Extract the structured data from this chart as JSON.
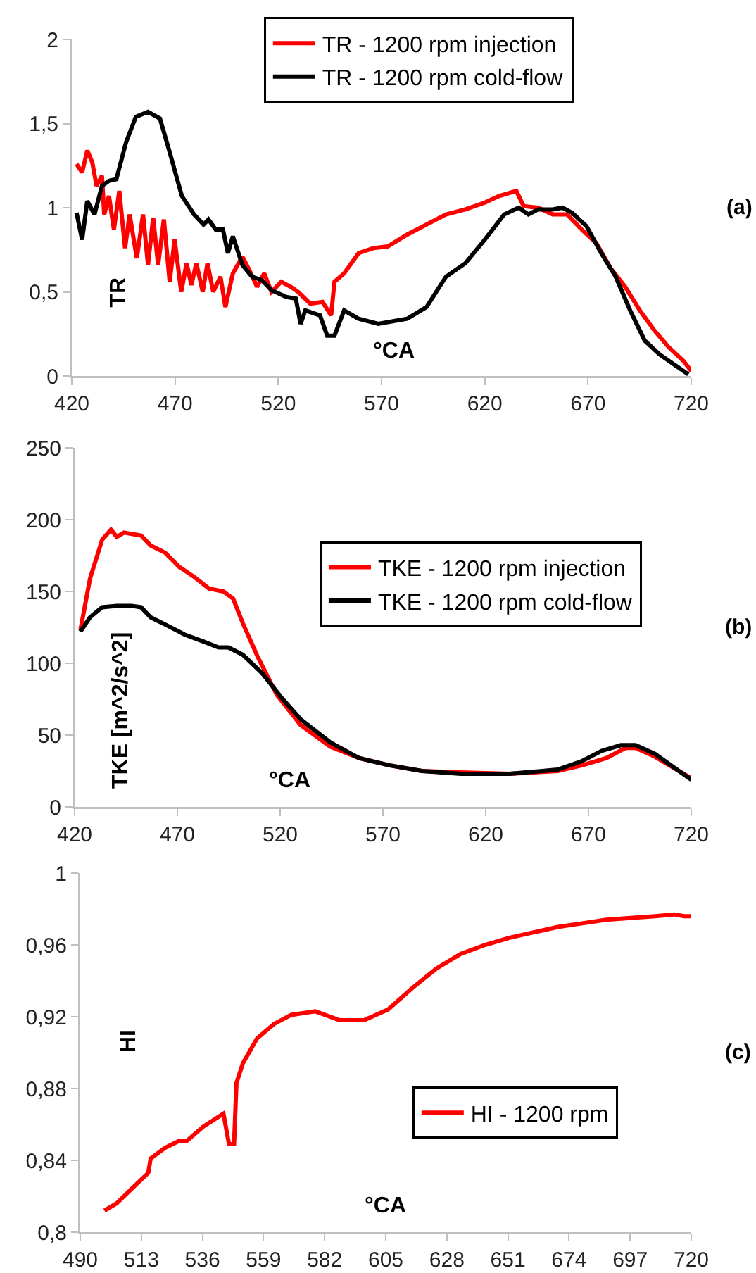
{
  "chart_data": [
    {
      "type": "line",
      "xlabel": "°CA",
      "ylabel": "TR",
      "annotations": [
        "(a)"
      ],
      "legend": "top",
      "grid": false,
      "xlim": [
        420,
        720
      ],
      "xticks": [
        420,
        470,
        520,
        570,
        620,
        670,
        720
      ],
      "ylim": [
        0,
        2
      ],
      "yticks": [
        0,
        {
          "value": 0.5,
          "label": "0,5"
        },
        1,
        {
          "value": 1.5,
          "label": "1,5"
        },
        2
      ],
      "series": [
        {
          "name": "TR - 1200 rpm injection",
          "color": "#ff0000",
          "x": [
            422.3,
            425,
            427.5,
            429.9,
            432,
            434.6,
            435.7,
            438,
            440.4,
            443,
            445.8,
            448,
            451.5,
            454.5,
            456.9,
            459.4,
            461.8,
            464.6,
            467.4,
            469.8,
            473,
            475.6,
            477.9,
            480.3,
            483.4,
            485.7,
            488.5,
            492,
            494.4,
            498,
            502.6,
            506,
            509.7,
            513.2,
            516.7,
            521.4,
            526,
            529.6,
            535.5,
            541.4,
            545.6,
            547.2,
            551.9,
            558.9,
            566,
            573,
            582.4,
            591.8,
            601.2,
            610.6,
            620,
            627,
            635.3,
            638.8,
            645.8,
            652.9,
            659.9,
            667,
            674,
            681,
            688,
            695.1,
            702.2,
            709.2,
            716.2,
            720
          ],
          "values": [
            1.26,
            1.21,
            1.34,
            1.27,
            1.13,
            1.19,
            0.96,
            1.07,
            0.87,
            1.1,
            0.76,
            0.96,
            0.7,
            0.96,
            0.66,
            0.94,
            0.66,
            0.93,
            0.56,
            0.81,
            0.5,
            0.67,
            0.54,
            0.67,
            0.5,
            0.67,
            0.5,
            0.59,
            0.41,
            0.61,
            0.71,
            0.63,
            0.53,
            0.61,
            0.5,
            0.56,
            0.53,
            0.5,
            0.43,
            0.44,
            0.36,
            0.56,
            0.61,
            0.73,
            0.76,
            0.77,
            0.84,
            0.9,
            0.96,
            0.99,
            1.03,
            1.07,
            1.1,
            1.01,
            1.0,
            0.96,
            0.96,
            0.87,
            0.79,
            0.64,
            0.53,
            0.39,
            0.27,
            0.17,
            0.09,
            0.03
          ]
        },
        {
          "name": "TR - 1200 rpm cold-flow",
          "color": "#000000",
          "x": [
            422.3,
            425,
            427.5,
            431,
            434.6,
            438,
            441.6,
            446.3,
            451,
            456.9,
            462.7,
            467.4,
            473.3,
            479.2,
            483.8,
            486.2,
            489.7,
            493.2,
            495.6,
            498,
            502.6,
            507.3,
            512,
            516.7,
            523.8,
            528.5,
            530.8,
            533.1,
            540.2,
            543.7,
            547.2,
            551.9,
            558.9,
            568.4,
            582.4,
            591.8,
            601.2,
            610.6,
            620,
            629.4,
            636.4,
            641.1,
            645.8,
            652.9,
            657.6,
            662.3,
            669.3,
            676.4,
            683.4,
            690.4,
            697.5,
            704.5,
            711.5,
            718.6
          ],
          "values": [
            0.97,
            0.81,
            1.04,
            0.96,
            1.13,
            1.16,
            1.17,
            1.39,
            1.54,
            1.57,
            1.53,
            1.33,
            1.07,
            0.96,
            0.9,
            0.93,
            0.87,
            0.87,
            0.73,
            0.83,
            0.66,
            0.59,
            0.57,
            0.51,
            0.47,
            0.46,
            0.31,
            0.39,
            0.36,
            0.24,
            0.24,
            0.39,
            0.34,
            0.31,
            0.34,
            0.41,
            0.59,
            0.67,
            0.81,
            0.96,
            1.0,
            0.96,
            0.99,
            0.99,
            1.0,
            0.97,
            0.89,
            0.73,
            0.59,
            0.39,
            0.21,
            0.13,
            0.07,
            0.01
          ]
        }
      ]
    },
    {
      "type": "line",
      "xlabel": "°CA",
      "ylabel": "TKE [m^2/s^2]",
      "annotations": [
        "(b)"
      ],
      "legend": "right",
      "grid": false,
      "xlim": [
        420,
        720
      ],
      "xticks": [
        420,
        470,
        520,
        570,
        620,
        670,
        720
      ],
      "ylim": [
        0,
        250
      ],
      "yticks": [
        0,
        50,
        100,
        150,
        200,
        250
      ],
      "series": [
        {
          "name": "TKE - 1200 rpm injection",
          "color": "#ff0000",
          "x": [
            422.8,
            427.5,
            433.4,
            437.7,
            440.5,
            444,
            452.3,
            457,
            464,
            471,
            478.3,
            485.4,
            492.4,
            497.1,
            501.8,
            508.9,
            518.4,
            530,
            544.3,
            558.4,
            573,
            589,
            608,
            631.6,
            655,
            667,
            678.7,
            688,
            692.9,
            702.3,
            714,
            720
          ],
          "values": [
            123,
            159,
            186,
            193,
            188,
            191,
            189,
            182,
            177,
            167,
            160,
            152,
            150,
            145,
            128,
            105,
            78,
            57,
            42,
            34,
            29,
            25,
            24,
            23,
            25,
            29,
            34,
            41,
            41,
            35,
            25,
            20
          ]
        },
        {
          "name": "TKE - 1200 rpm cold-flow",
          "color": "#000000",
          "x": [
            422.8,
            427.5,
            433.4,
            440.5,
            447.6,
            452.3,
            457,
            464,
            473.5,
            482.9,
            490,
            494.8,
            501.8,
            511.3,
            520.7,
            530,
            544.3,
            558.4,
            573,
            589,
            608,
            631.6,
            655,
            667,
            676.4,
            685.8,
            692.9,
            702.3,
            714,
            720
          ],
          "values": [
            122,
            132,
            139,
            140,
            140,
            139,
            132,
            127,
            120,
            115,
            111,
            111,
            106,
            93,
            76,
            61,
            45,
            34,
            29,
            25,
            23,
            23,
            26,
            32,
            39,
            43,
            43,
            37,
            25,
            19
          ]
        }
      ]
    },
    {
      "type": "line",
      "xlabel": "°CA",
      "ylabel": "HI",
      "annotations": [
        "(c)"
      ],
      "legend": "bottom right",
      "grid": false,
      "xlim": [
        490,
        720
      ],
      "xticks": [
        490,
        513,
        536,
        559,
        582,
        605,
        628,
        651,
        674,
        697,
        720
      ],
      "ylim": [
        0.8,
        1
      ],
      "yticks": [
        {
          "value": 0.8,
          "label": "0,8"
        },
        {
          "value": 0.84,
          "label": "0,84"
        },
        {
          "value": 0.88,
          "label": "0,88"
        },
        {
          "value": 0.92,
          "label": "0,92"
        },
        {
          "value": 0.96,
          "label": "0,96"
        },
        1
      ],
      "series": [
        {
          "name": "HI - 1200 rpm",
          "color": "#ff0000",
          "x": [
            499.1,
            503.7,
            509.2,
            515.6,
            516.5,
            522,
            527.4,
            530.2,
            536.5,
            543.9,
            546,
            547.9,
            548.8,
            551.2,
            556.6,
            563,
            569.4,
            578.5,
            587.7,
            596.8,
            605.9,
            615,
            624.2,
            633.3,
            642.4,
            651.6,
            660.7,
            669.8,
            679,
            688,
            697.2,
            706.4,
            713.6,
            717.3,
            720
          ],
          "values": [
            0.812,
            0.816,
            0.824,
            0.833,
            0.841,
            0.847,
            0.851,
            0.851,
            0.859,
            0.866,
            0.849,
            0.849,
            0.883,
            0.894,
            0.908,
            0.916,
            0.921,
            0.923,
            0.918,
            0.918,
            0.924,
            0.936,
            0.947,
            0.955,
            0.96,
            0.964,
            0.967,
            0.97,
            0.972,
            0.974,
            0.975,
            0.976,
            0.977,
            0.976,
            0.976
          ]
        }
      ]
    }
  ]
}
